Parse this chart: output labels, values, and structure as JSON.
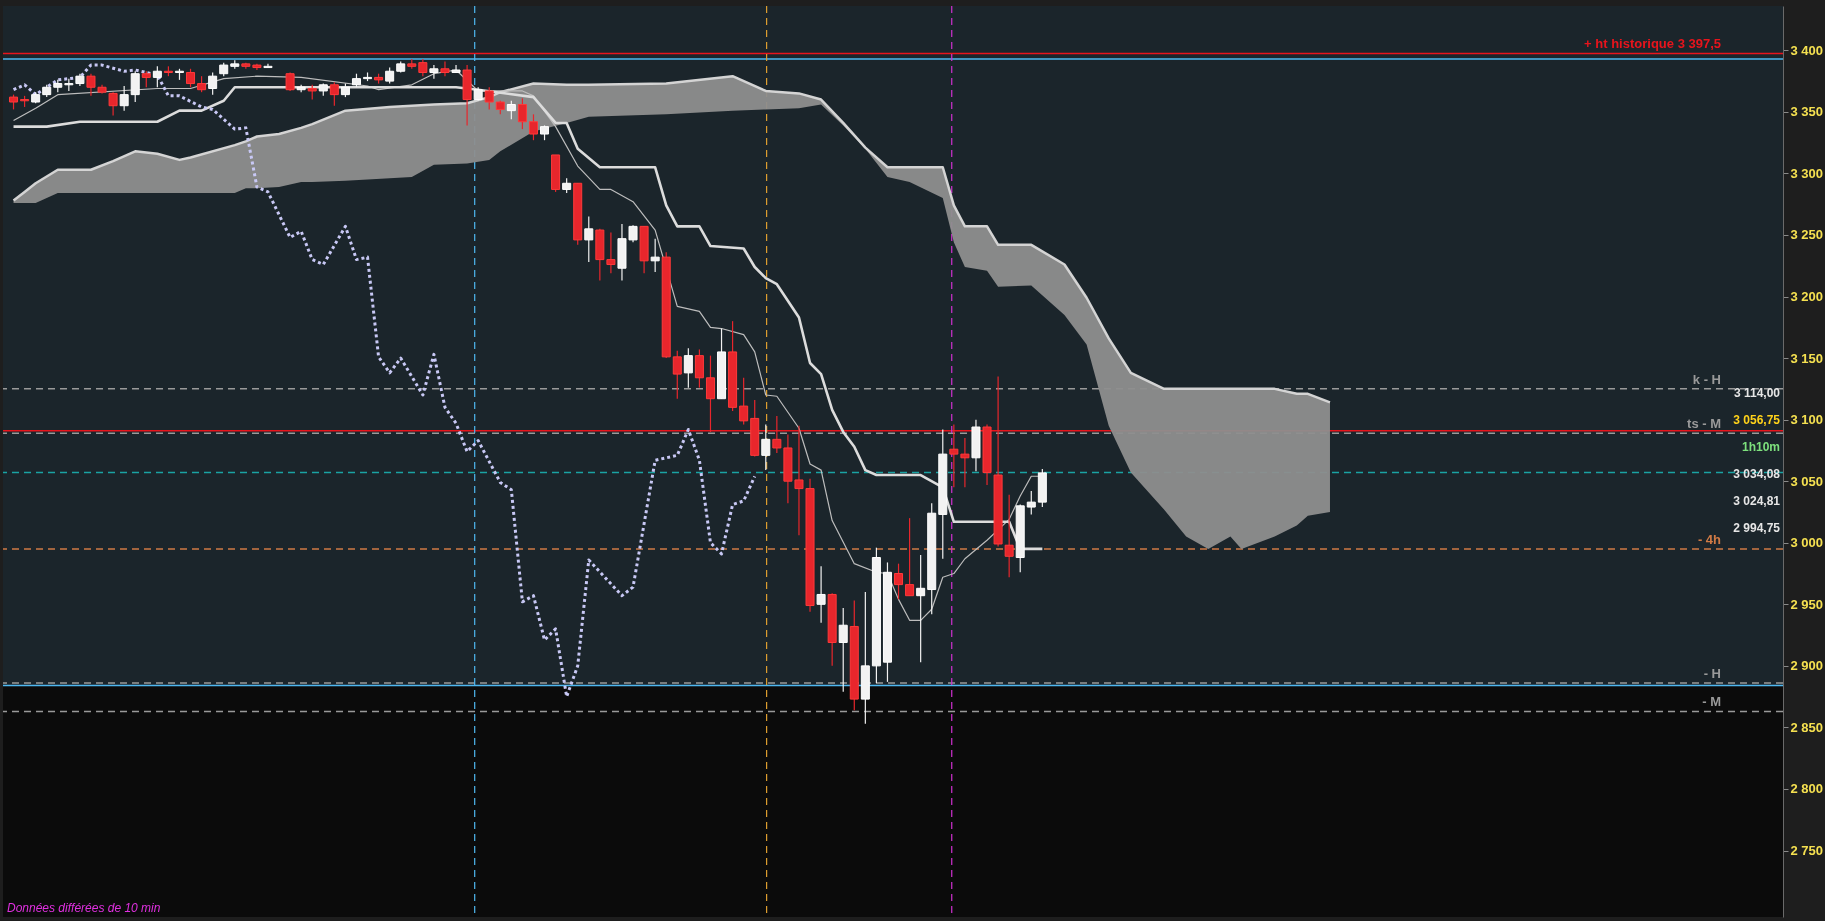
{
  "chart_data": {
    "type": "candlestick",
    "categories": [
      null,
      null,
      null,
      null,
      null,
      null,
      null,
      null,
      null,
      null,
      null,
      null,
      null,
      null,
      null,
      null,
      null,
      null,
      null,
      null,
      null,
      null,
      null,
      null,
      null,
      null,
      null,
      null,
      null,
      null,
      null,
      null,
      null,
      null,
      null,
      null,
      null,
      null,
      null,
      null,
      null,
      null,
      null,
      null,
      null,
      null,
      null,
      null,
      null,
      null,
      null,
      null,
      null,
      null,
      null,
      null,
      null,
      null,
      null,
      null,
      null,
      null,
      null,
      null,
      null,
      null,
      null,
      null,
      null,
      null,
      null,
      null,
      null,
      null,
      null,
      null,
      null,
      null,
      null,
      null,
      null,
      null,
      null,
      null,
      null,
      null,
      null,
      null,
      null,
      null,
      null,
      null,
      null,
      null,
      null,
      null,
      null,
      null,
      null,
      null,
      null,
      null,
      null,
      null,
      null,
      null,
      null,
      null,
      null,
      null,
      null,
      null,
      null,
      null,
      null,
      null,
      null,
      null,
      null,
      null,
      null,
      null,
      null,
      null,
      null,
      null,
      null,
      null,
      null,
      null,
      null,
      null,
      null,
      null,
      null,
      null,
      null,
      null,
      null,
      null,
      null,
      null,
      null,
      null,
      null,
      null,
      null,
      null,
      null,
      null,
      null,
      null,
      null,
      null,
      null,
      null,
      null,
      null,
      null,
      null
    ],
    "ohlc": [
      [
        3362,
        3364,
        3352,
        3358
      ],
      [
        3360,
        3363,
        3354,
        3359
      ],
      [
        3358,
        3366,
        3357,
        3364
      ],
      [
        3364,
        3372,
        3362,
        3370
      ],
      [
        3370,
        3376,
        3366,
        3373
      ],
      [
        3372,
        3377,
        3367,
        3373
      ],
      [
        3373,
        3381,
        3371,
        3379
      ],
      [
        3379,
        3381,
        3363,
        3370
      ],
      [
        3370,
        3372,
        3365,
        3366
      ],
      [
        3365,
        3366,
        3347,
        3355
      ],
      [
        3355,
        3371,
        3351,
        3364
      ],
      [
        3364,
        3383,
        3358,
        3381
      ],
      [
        3381,
        3383,
        3370,
        3378
      ],
      [
        3378,
        3387,
        3370,
        3383
      ],
      [
        3383,
        3387,
        3379,
        3382
      ],
      [
        3382,
        3385,
        3376,
        3383
      ],
      [
        3382,
        3385,
        3370,
        3373
      ],
      [
        3373,
        3379,
        3366,
        3368
      ],
      [
        3369,
        3382,
        3364,
        3379
      ],
      [
        3381,
        3390,
        3379,
        3388
      ],
      [
        3387,
        3392,
        3385,
        3389
      ],
      [
        3389,
        3390,
        3385,
        3387
      ],
      [
        3388,
        3389,
        3384,
        3386
      ],
      [
        3386,
        3389,
        3386,
        3387
      ],
      null,
      [
        3381,
        3382,
        3367,
        3368
      ],
      [
        3368,
        3372,
        3366,
        3370
      ],
      [
        3369,
        3372,
        3360,
        3367
      ],
      [
        3367,
        3373,
        3363,
        3372
      ],
      [
        3372,
        3374,
        3355,
        3364
      ],
      [
        3364,
        3373,
        3362,
        3370
      ],
      [
        3372,
        3381,
        3370,
        3377
      ],
      [
        3377,
        3382,
        3375,
        3378
      ],
      [
        3378,
        3381,
        3373,
        3376
      ],
      [
        3375,
        3386,
        3373,
        3383
      ],
      [
        3383,
        3391,
        3382,
        3389
      ],
      [
        3389,
        3393,
        3385,
        3387
      ],
      [
        3390,
        3393,
        3379,
        3382
      ],
      [
        3382,
        3388,
        3377,
        3385
      ],
      [
        3385,
        3391,
        3379,
        3382
      ],
      [
        3382,
        3388,
        3382,
        3384
      ],
      [
        3384,
        3388,
        3339,
        3360
      ],
      [
        3360,
        3370,
        3359,
        3368
      ],
      [
        3367,
        3370,
        3352,
        3358
      ],
      [
        3358,
        3359,
        3348,
        3352
      ],
      [
        3351,
        3359,
        3344,
        3356
      ],
      [
        3356,
        3361,
        3336,
        3342
      ],
      [
        3342,
        3348,
        3327,
        3332
      ],
      [
        3332,
        3339,
        3327,
        3338
      ],
      [
        3315,
        3315,
        3285,
        3287
      ],
      [
        3287,
        3296,
        3284,
        3292
      ],
      [
        3292,
        3292,
        3242,
        3246
      ],
      [
        3246,
        3265,
        3228,
        3255
      ],
      [
        3254,
        3255,
        3213,
        3230
      ],
      [
        3230,
        3252,
        3219,
        3226
      ],
      [
        3223,
        3259,
        3213,
        3247
      ],
      [
        3246,
        3258,
        3244,
        3257
      ],
      [
        3257,
        3257,
        3219,
        3229
      ],
      [
        3229,
        3247,
        3220,
        3232
      ],
      [
        3232,
        3236,
        3150,
        3151
      ],
      [
        3151,
        3156,
        3117,
        3137
      ],
      [
        3138,
        3158,
        3126,
        3152
      ],
      [
        3152,
        3157,
        3126,
        3134
      ],
      [
        3134,
        3152,
        3090,
        3117
      ],
      [
        3117,
        3174,
        3117,
        3155
      ],
      [
        3155,
        3180,
        3107,
        3110
      ],
      [
        3111,
        3134,
        3096,
        3099
      ],
      [
        3101,
        3116,
        3070,
        3071
      ],
      [
        3071,
        3096,
        3059,
        3084
      ],
      [
        3084,
        3103,
        3073,
        3077
      ],
      [
        3077,
        3088,
        3032,
        3050
      ],
      [
        3051,
        3095,
        3006,
        3044
      ],
      [
        3044,
        3052,
        2944,
        2949
      ],
      [
        2950,
        2981,
        2935,
        2958
      ],
      [
        2958,
        2959,
        2900,
        2919
      ],
      [
        2919,
        2947,
        2879,
        2933
      ],
      [
        2932,
        2953,
        2864,
        2873
      ],
      [
        2873,
        2960,
        2853,
        2900
      ],
      [
        2900,
        2996,
        2886,
        2988
      ],
      [
        2903,
        2984,
        2887,
        2976
      ],
      [
        2975,
        2983,
        2954,
        2966
      ],
      [
        2966,
        3020,
        2957,
        2957
      ],
      [
        2957,
        2990,
        2903,
        2963
      ],
      [
        2962,
        3032,
        2942,
        3024
      ],
      [
        3023,
        3092,
        2987,
        3072
      ],
      [
        3076,
        3096,
        3045,
        3072
      ],
      [
        3072,
        3085,
        3045,
        3069
      ],
      [
        3069,
        3100,
        3058,
        3094
      ],
      [
        3094,
        3096,
        3047,
        3057
      ],
      [
        3055,
        3135,
        2997,
        2999
      ],
      [
        2998,
        3039,
        2972,
        2989
      ],
      [
        2988,
        3031,
        2976,
        3030
      ],
      [
        3029,
        3042,
        3023,
        3033
      ],
      [
        3033,
        3060,
        3029,
        3056.75
      ],
      null,
      null,
      null,
      null,
      null,
      null,
      null,
      null,
      null,
      null,
      null,
      null,
      null,
      null,
      null,
      null,
      null,
      null,
      null,
      null,
      null,
      null,
      null,
      null,
      null,
      null,
      null,
      null,
      null,
      null,
      null,
      null,
      null,
      null,
      null,
      null,
      null,
      null,
      null,
      null,
      null,
      null,
      null,
      null,
      null,
      null,
      null,
      null,
      null,
      null,
      null,
      null,
      null,
      null,
      null,
      null,
      null,
      null,
      null,
      null,
      null,
      null,
      null,
      null,
      null,
      null
    ],
    "series": [
      {
        "type": "line",
        "color": "#d4d4d4",
        "upper": [
          3278,
          3285,
          3292,
          null,
          3303,
          null,
          null,
          3303,
          null,
          3310,
          null,
          3318,
          null,
          3316,
          null,
          3311,
          3313,
          null,
          null,
          null,
          3323,
          3326,
          3330,
          null,
          3332,
          null,
          3337,
          3340,
          null,
          null,
          3351,
          null,
          null,
          null,
          3354,
          null,
          3355,
          null,
          3356,
          null,
          null,
          3357,
          null,
          3362,
          3366,
          null,
          null,
          3373,
          null,
          null,
          3372,
          null,
          3372,
          null,
          null,
          null,
          null,
          null,
          null,
          3373,
          null,
          null,
          null,
          null,
          null,
          3379,
          null,
          null,
          3367,
          null,
          null,
          3365,
          null,
          3360,
          null,
          3341,
          null,
          3321,
          null,
          3305,
          null,
          3305,
          null,
          null,
          3305,
          3274,
          3257,
          null,
          3257,
          3242,
          null,
          null,
          3242,
          null,
          null,
          3226,
          null,
          3199,
          null,
          3166,
          null,
          3138,
          null,
          null,
          3125,
          null,
          3125,
          null,
          3125,
          null,
          3125,
          3125,
          null,
          null,
          3125,
          null,
          3121,
          3121,
          null,
          3114,
          null,
          null,
          null,
          null,
          null,
          null,
          null,
          null,
          null,
          null,
          null,
          null,
          null,
          null,
          null,
          null,
          null,
          null,
          null,
          null,
          null,
          null,
          null,
          null,
          null,
          null,
          null,
          null,
          null,
          null,
          null,
          null,
          null,
          null,
          null,
          null,
          null,
          null,
          null,
          null
        ],
        "values": [
          3278,
          3285,
          3292,
          null,
          3303,
          null,
          null,
          3303,
          null,
          3310,
          null,
          3318,
          null,
          3316,
          null,
          3311,
          3313,
          null,
          null,
          null,
          3323,
          3326,
          3330,
          null,
          3332,
          null,
          3337,
          3340,
          null,
          null,
          3351,
          null,
          null,
          null,
          3354,
          null,
          3355,
          null,
          3356,
          null,
          null,
          3357,
          null,
          3362,
          3366,
          null,
          null,
          3373,
          null,
          null,
          3372,
          null,
          3372,
          null,
          null,
          null,
          null,
          null,
          null,
          3373,
          null,
          null,
          null,
          null,
          null,
          3379,
          null,
          null,
          3367,
          null,
          null,
          3365,
          null,
          3360,
          null,
          3341,
          null,
          3321,
          null,
          3305,
          null,
          3305,
          null,
          null,
          3305,
          3274,
          3257,
          null,
          3257,
          3242,
          null,
          null,
          3242,
          null,
          null,
          3226,
          null,
          3199,
          null,
          3166,
          null,
          3138,
          null,
          null,
          3125,
          null,
          3125,
          null,
          3125,
          null,
          3125,
          3125,
          null,
          null,
          3125,
          null,
          3121,
          3121,
          null,
          3114,
          null,
          null,
          null,
          null,
          null,
          null,
          null,
          null,
          null,
          null,
          null,
          null,
          null,
          null,
          null,
          null,
          null,
          null,
          null,
          null,
          null,
          null,
          null,
          null,
          null,
          null,
          null,
          null,
          null,
          null,
          null,
          null,
          null,
          null,
          null,
          null,
          null,
          null,
          null,
          null
        ],
        "lower": [
          3276,
          3276,
          3276,
          null,
          3284,
          null,
          null,
          3284,
          null,
          3284,
          null,
          3284,
          null,
          3284,
          null,
          3284,
          3284,
          null,
          null,
          null,
          3284,
          3288,
          3288,
          null,
          3289,
          null,
          3293,
          3293,
          null,
          null,
          3294,
          null,
          null,
          null,
          3296,
          null,
          3297,
          null,
          3307,
          null,
          null,
          3308,
          null,
          3311,
          3318,
          null,
          null,
          3334,
          null,
          null,
          3341,
          null,
          3346,
          null,
          null,
          null,
          null,
          null,
          null,
          3348,
          null,
          null,
          null,
          null,
          null,
          3351,
          null,
          null,
          3352,
          null,
          null,
          3353,
          null,
          3356,
          null,
          3339,
          null,
          3320,
          null,
          3297,
          null,
          3293,
          null,
          null,
          3280,
          3244,
          3224,
          null,
          3221,
          3208,
          null,
          null,
          3209,
          null,
          null,
          3185,
          null,
          3161,
          null,
          3095,
          null,
          3057,
          null,
          null,
          3027,
          null,
          3005,
          null,
          2995,
          null,
          3005,
          2995,
          null,
          null,
          3005,
          null,
          3014,
          3022,
          null,
          3025,
          null,
          null,
          null,
          null,
          null,
          null,
          null,
          null,
          null,
          null,
          null,
          null,
          null,
          null,
          null,
          null,
          null,
          null,
          null,
          null,
          null,
          null,
          null,
          null,
          null,
          null,
          null,
          null,
          null,
          null,
          null,
          null,
          null,
          null,
          null,
          null,
          null,
          null,
          null,
          null
        ]
      },
      {
        "type": "line",
        "color": "#bdbdbd",
        "values": [
          3343,
          null,
          3353,
          null,
          3364,
          null,
          null,
          null,
          null,
          null,
          null,
          null,
          null,
          3369,
          null,
          null,
          3369,
          null,
          null,
          3377,
          null,
          null,
          3379,
          null,
          null,
          null,
          3378,
          null,
          null,
          null,
          null,
          null,
          3371,
          3368,
          null,
          null,
          3372,
          null,
          3381,
          null,
          3384,
          null,
          3367,
          null,
          null,
          null,
          3367,
          3363,
          null,
          3338,
          null,
          3306,
          null,
          3287,
          3287,
          null,
          3277,
          null,
          3254,
          null,
          3192,
          null,
          3188,
          3175,
          3174,
          null,
          3169,
          3155,
          3120,
          3119,
          null,
          3093,
          3064,
          3059,
          3018,
          null,
          2983,
          null,
          2976,
          2975,
          2954,
          2937,
          2937,
          2946,
          2972,
          2975,
          2987,
          null,
          3002,
          null,
          3019,
          3038,
          3054,
          3054,
          null,
          null,
          null,
          null,
          null,
          null,
          null,
          null,
          null,
          null,
          null,
          null,
          null,
          null,
          null,
          null,
          null,
          null,
          null,
          null,
          null,
          null,
          null,
          null,
          null,
          null,
          null,
          null,
          null,
          null,
          null,
          null,
          null,
          null,
          null,
          null,
          null,
          null,
          null,
          null,
          null,
          null,
          null,
          null,
          null,
          null,
          null,
          null,
          null,
          null,
          null,
          null,
          null,
          null,
          null,
          null,
          null,
          null,
          null,
          null,
          null,
          null,
          null,
          null,
          null,
          null
        ]
      },
      {
        "type": "line",
        "color": "#dcdcdc",
        "values": [
          3338,
          null,
          null,
          3338,
          null,
          null,
          3342,
          null,
          null,
          null,
          null,
          null,
          null,
          3342,
          null,
          3351,
          null,
          3351,
          null,
          3359,
          3370,
          null,
          null,
          null,
          null,
          null,
          null,
          null,
          null,
          null,
          null,
          null,
          null,
          null,
          null,
          null,
          null,
          null,
          null,
          null,
          3370,
          null,
          3368,
          null,
          null,
          null,
          null,
          3362,
          null,
          3341,
          3341,
          3320,
          null,
          3305,
          null,
          null,
          null,
          null,
          3305,
          3274,
          3257,
          null,
          3257,
          3241,
          null,
          null,
          3239,
          3224,
          3215,
          3210,
          null,
          3183,
          3146,
          3137,
          3108,
          3090,
          3078,
          3059,
          3055,
          null,
          null,
          null,
          3055,
          null,
          3045,
          3017,
          null,
          null,
          null,
          null,
          3017,
          2995,
          null,
          2995,
          null,
          null,
          null,
          null,
          null,
          null,
          null,
          null,
          null,
          null,
          null,
          null,
          null,
          null,
          null,
          null,
          null,
          null,
          null,
          null,
          null,
          null,
          null,
          null,
          null,
          null,
          null,
          null,
          null,
          null,
          null,
          null,
          null,
          null,
          null,
          null,
          null,
          null,
          null,
          null,
          null,
          null,
          null,
          null,
          null,
          null,
          null,
          null,
          null,
          null,
          null,
          null,
          null,
          null,
          null,
          null,
          null,
          null,
          null,
          null,
          null,
          null,
          null,
          null,
          null,
          null
        ]
      },
      {
        "type": "line",
        "color": "#c8c8f5",
        "line_style": "dotted",
        "values": [
          3368,
          3372,
          3364,
          null,
          3376,
          null,
          3378,
          3388,
          3388,
          null,
          3383,
          3384,
          null,
          3380,
          3363,
          3363,
          null,
          3354,
          3352,
          null,
          3336,
          3337,
          3289,
          3285,
          null,
          3248,
          3253,
          3230,
          3226,
          null,
          3257,
          3230,
          3232,
          3151,
          3138,
          3150,
          null,
          3120,
          3153,
          3110,
          3097,
          3074,
          3083,
          null,
          3049,
          3043,
          2952,
          2957,
          2921,
          2930,
          2875,
          2900,
          2986,
          null,
          null,
          2957,
          2964,
          null,
          3067,
          null,
          3071,
          3092,
          3067,
          3000,
          2991,
          3031,
          3034,
          3054,
          null,
          null,
          null,
          null,
          null,
          null,
          null,
          null,
          null,
          null,
          null,
          null,
          null,
          null,
          null,
          null,
          null,
          null,
          null,
          null,
          null,
          null,
          null,
          null,
          null,
          null,
          null,
          null,
          null,
          null,
          null,
          null,
          null,
          null,
          null,
          null,
          null,
          null,
          null,
          null,
          null,
          null,
          null,
          null,
          null,
          null,
          null,
          null,
          null,
          null,
          null,
          null,
          null,
          null,
          null,
          null,
          null,
          null,
          null,
          null,
          null,
          null,
          null,
          null,
          null,
          null,
          null,
          null,
          null,
          null,
          null,
          null,
          null,
          null,
          null,
          null,
          null,
          null,
          null,
          null,
          null,
          null,
          null,
          null,
          null,
          null,
          null,
          null,
          null,
          null,
          null,
          null
        ]
      }
    ],
    "ylim": [
      2696,
      3436
    ],
    "yticks": [
      {
        "value": 2750,
        "label": "2 750"
      },
      {
        "value": 2800,
        "label": "2 800"
      },
      {
        "value": 2850,
        "label": "2 850"
      },
      {
        "value": 2900,
        "label": "2 900"
      },
      {
        "value": 2950,
        "label": "2 950"
      },
      {
        "value": 3000,
        "label": "3 000"
      },
      {
        "value": 3050,
        "label": "3 050"
      },
      {
        "value": 3100,
        "label": "3 100"
      },
      {
        "value": 3150,
        "label": "3 150"
      },
      {
        "value": 3200,
        "label": "3 200"
      },
      {
        "value": 3250,
        "label": "3 250"
      },
      {
        "value": 3300,
        "label": "3 300"
      },
      {
        "value": 3350,
        "label": "3 350"
      },
      {
        "value": 3400,
        "label": "3 400"
      }
    ],
    "tick_labels": "y",
    "bands": [
      {
        "axis": "y",
        "from": 2696,
        "to": 2884,
        "color": "#0b0b0b"
      }
    ],
    "ref_lines": [
      {
        "axis": "y",
        "value": 3397.5,
        "label": "+ ht historique 3 397,5",
        "color": "#e8141c",
        "line_style": "solid"
      },
      {
        "axis": "y",
        "value": 3393,
        "color": "#4fb8f0",
        "line_style": "solid"
      },
      {
        "axis": "y",
        "value": 3125,
        "label": "k - H",
        "color": "#9a9a9a",
        "line_style": "dashed"
      },
      {
        "axis": "y",
        "value": 3091,
        "color": "#e8141c",
        "line_style": "solid"
      },
      {
        "axis": "y",
        "value": 3089,
        "label": "ts - M",
        "color": "#9a9a9a",
        "line_style": "dashed"
      },
      {
        "axis": "y",
        "value": 3057,
        "color": "#1aa3a3",
        "line_style": "dashed"
      },
      {
        "axis": "y",
        "value": 2995,
        "label": "- 4h",
        "color": "#d07a45",
        "line_style": "dashed"
      },
      {
        "axis": "y",
        "value": 2886,
        "label": "- H",
        "color": "#9a9a9a",
        "line_style": "dashed"
      },
      {
        "axis": "y",
        "value": 2884,
        "color": "#4fb8f0",
        "line_style": "solid"
      },
      {
        "axis": "y",
        "value": 2863,
        "label": "- M",
        "color": "#9a9a9a",
        "line_style": "dashed"
      }
    ],
    "annotations": [
      "3 114,00",
      "3 056,75",
      "1h10m",
      "3 034,08",
      "3 024,81",
      "2 994,75",
      "Données différées de 10 min"
    ]
  }
}
